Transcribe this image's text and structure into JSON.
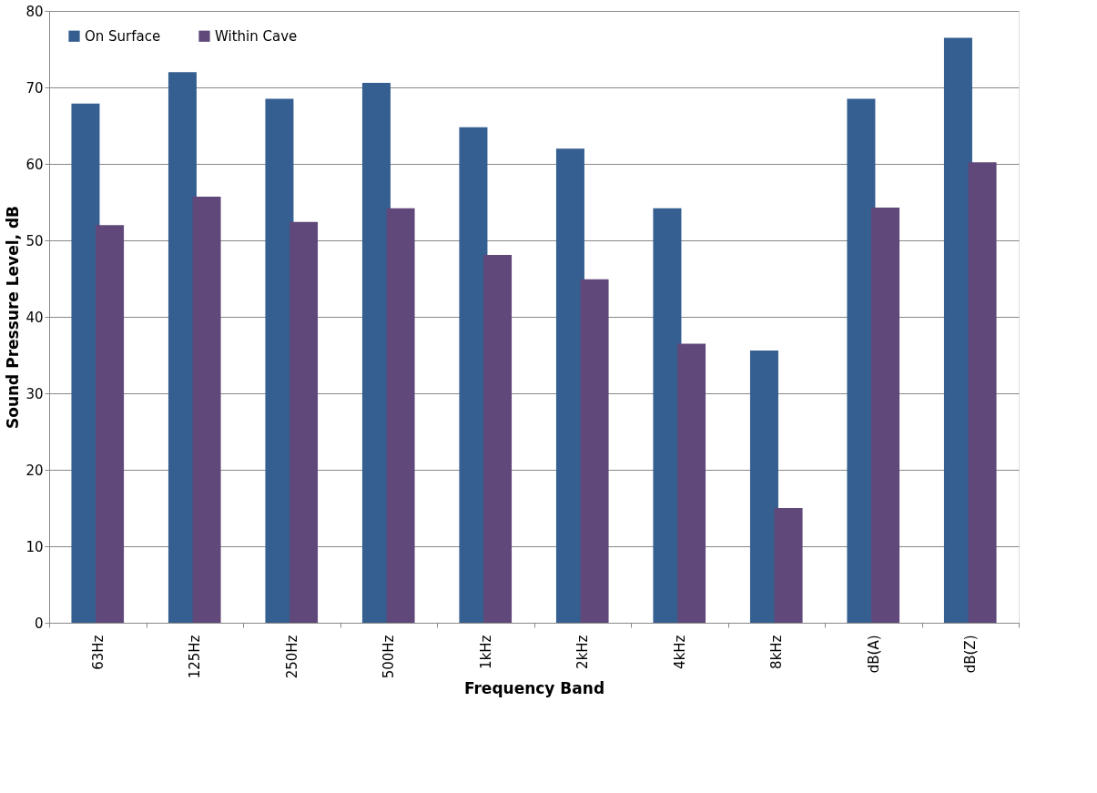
{
  "chart_data": {
    "type": "bar",
    "xlabel": "Frequency Band",
    "ylabel": "Sound Pressure Level, dB",
    "categories": [
      "63Hz",
      "125Hz",
      "250Hz",
      "500Hz",
      "1kHz",
      "2kHz",
      "4kHz",
      "8kHz",
      "dB(A)",
      "dB(Z)"
    ],
    "series": [
      {
        "name": "On Surface",
        "color": "#355f91",
        "values": [
          67.9,
          72.0,
          68.5,
          70.6,
          64.8,
          62.0,
          54.2,
          35.6,
          68.5,
          76.5
        ]
      },
      {
        "name": "Within Cave",
        "color": "#60497a",
        "values": [
          52.0,
          55.7,
          52.4,
          54.2,
          48.1,
          44.9,
          36.5,
          15.0,
          54.3,
          60.2
        ]
      }
    ],
    "ylim": [
      0,
      80
    ],
    "yticks": [
      0,
      10,
      20,
      30,
      40,
      50,
      60,
      70,
      80
    ],
    "grid": "y",
    "legend": "top left"
  }
}
